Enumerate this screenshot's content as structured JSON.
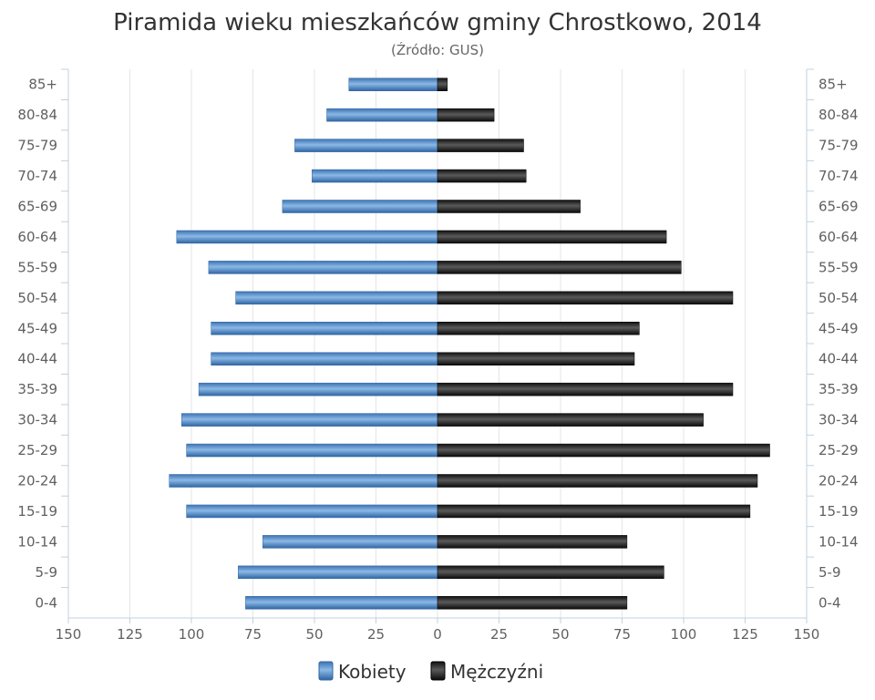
{
  "chart_data": {
    "type": "bar",
    "orientation": "horizontal-pyramid",
    "title": "Piramida wieku mieszkańców gminy Chrostkowo, 2014",
    "subtitle": "(Źródło: GUS)",
    "categories": [
      "85+",
      "80-84",
      "75-79",
      "70-74",
      "65-69",
      "60-64",
      "55-59",
      "50-54",
      "45-49",
      "40-44",
      "35-39",
      "30-34",
      "25-29",
      "20-24",
      "15-19",
      "10-14",
      "5-9",
      "0-4"
    ],
    "series": [
      {
        "name": "Kobiety",
        "color": "#4a86c5",
        "values": [
          36,
          45,
          58,
          51,
          63,
          106,
          93,
          82,
          92,
          92,
          97,
          104,
          102,
          109,
          102,
          71,
          81,
          78
        ]
      },
      {
        "name": "Mężczyźni",
        "color": "#1a1a1a",
        "values": [
          4,
          23,
          35,
          36,
          58,
          93,
          99,
          120,
          82,
          80,
          120,
          108,
          135,
          130,
          127,
          77,
          92,
          77
        ]
      }
    ],
    "xlim": [
      -150,
      150
    ],
    "xticks": [
      "150",
      "125",
      "100",
      "75",
      "50",
      "25",
      "0",
      "25",
      "50",
      "75",
      "100",
      "125",
      "150"
    ],
    "grid": true,
    "legend_position": "bottom-center"
  }
}
